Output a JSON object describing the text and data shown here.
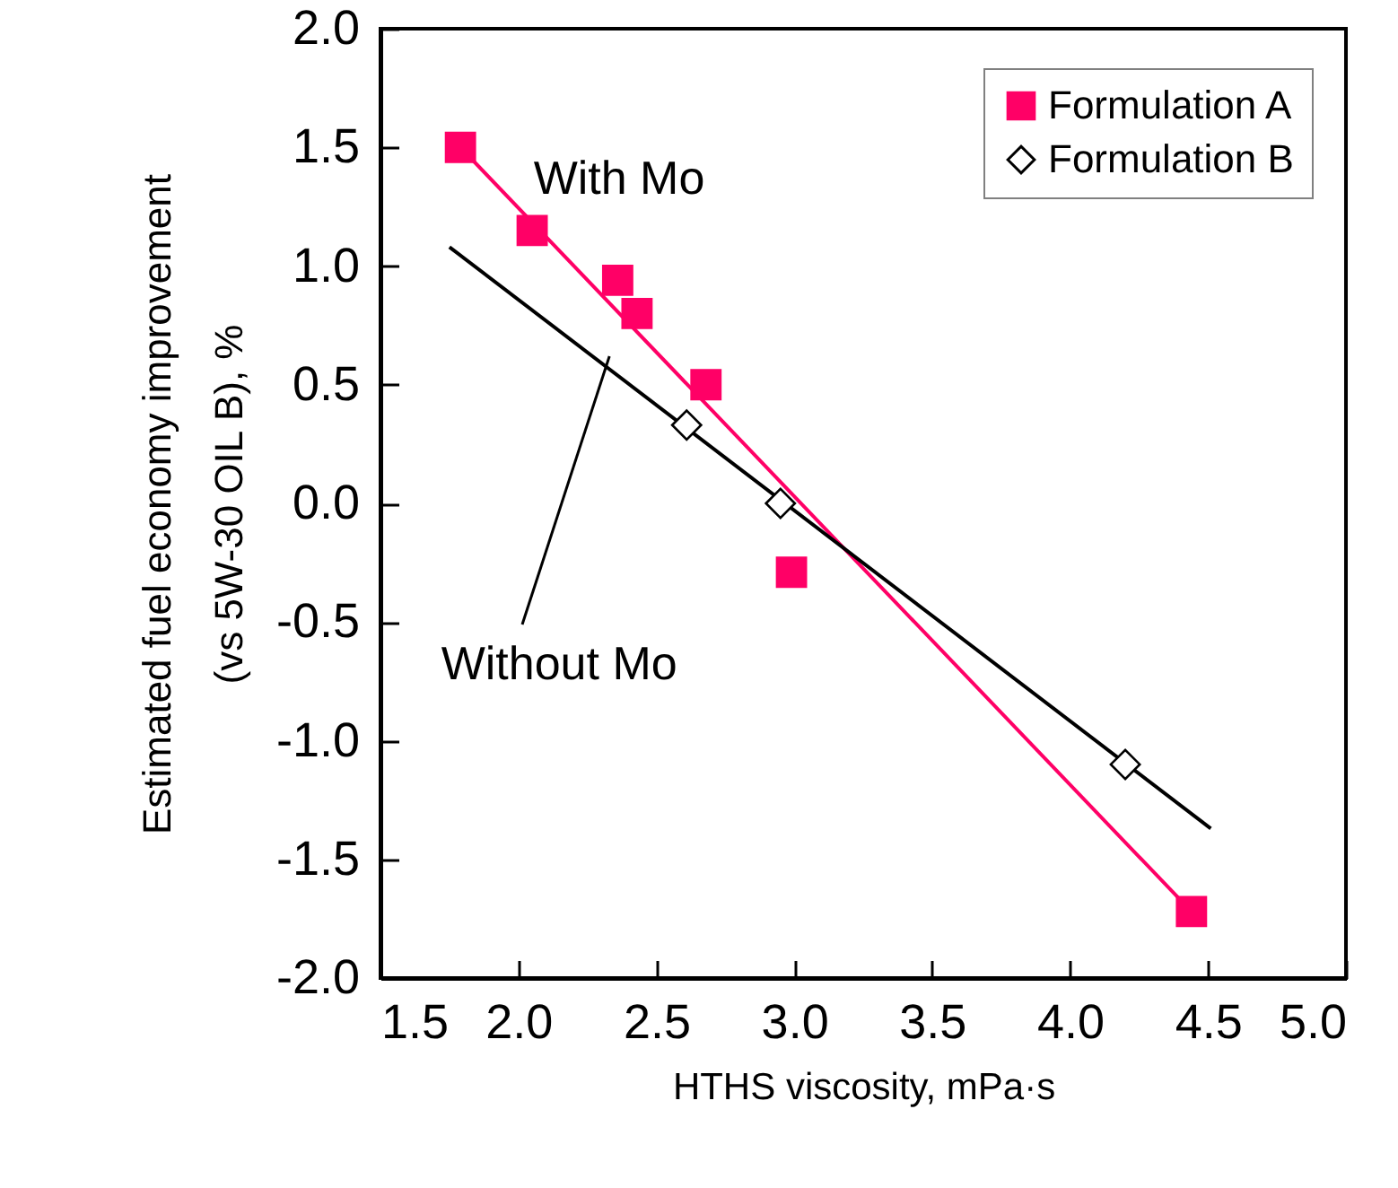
{
  "chart_data": {
    "type": "scatter",
    "xlabel": "HTHS viscosity, mPa·s",
    "ylabel": "Estimated fuel economy improvement\n(vs 5W-30 OIL B), %",
    "xlim": [
      1.5,
      5.0
    ],
    "xticks": [
      1.5,
      {
        "value": 2,
        "label": "2.0"
      },
      2.5,
      {
        "value": 3,
        "label": "3.0"
      },
      3.5,
      {
        "value": 4,
        "label": "4.0"
      },
      4.5,
      {
        "value": 5,
        "label": "5.0"
      }
    ],
    "ylim": [
      -2.0,
      2.0
    ],
    "yticks": [
      {
        "value": -2,
        "label": "-2.0"
      },
      -1.5,
      {
        "value": -1,
        "label": "-1.0"
      },
      -0.5,
      {
        "value": 0,
        "label": "0.0"
      },
      0.5,
      {
        "value": 1,
        "label": "1.0"
      },
      1.5,
      {
        "value": 2,
        "label": "2.0"
      }
    ],
    "grid": false,
    "legend": "top right",
    "annotations": [
      "With Mo",
      {
        "text": "Without Mo",
        "x": 2.33,
        "y": 0.62
      }
    ],
    "series": [
      {
        "name": "Formulation A",
        "color": "#ff0066",
        "marker": "square",
        "x": [
          1.79,
          2.05,
          2.36,
          2.43,
          2.68,
          2.99,
          4.44
        ],
        "values": [
          1.5,
          1.15,
          0.94,
          0.8,
          0.5,
          -0.29,
          -1.72
        ]
      },
      {
        "name": "Formulation B",
        "color": "#000000",
        "marker": "diamond",
        "x": [
          2.61,
          2.95,
          4.2
        ],
        "values": [
          0.33,
          0.0,
          -1.1
        ]
      },
      {
        "type": "line",
        "color": "#ff0066",
        "x": [
          1.79,
          4.44
        ],
        "values": [
          1.5,
          -1.72
        ]
      },
      {
        "type": "line",
        "color": "#000000",
        "x": [
          1.75,
          4.51
        ],
        "values": [
          1.08,
          -1.37
        ]
      }
    ]
  }
}
